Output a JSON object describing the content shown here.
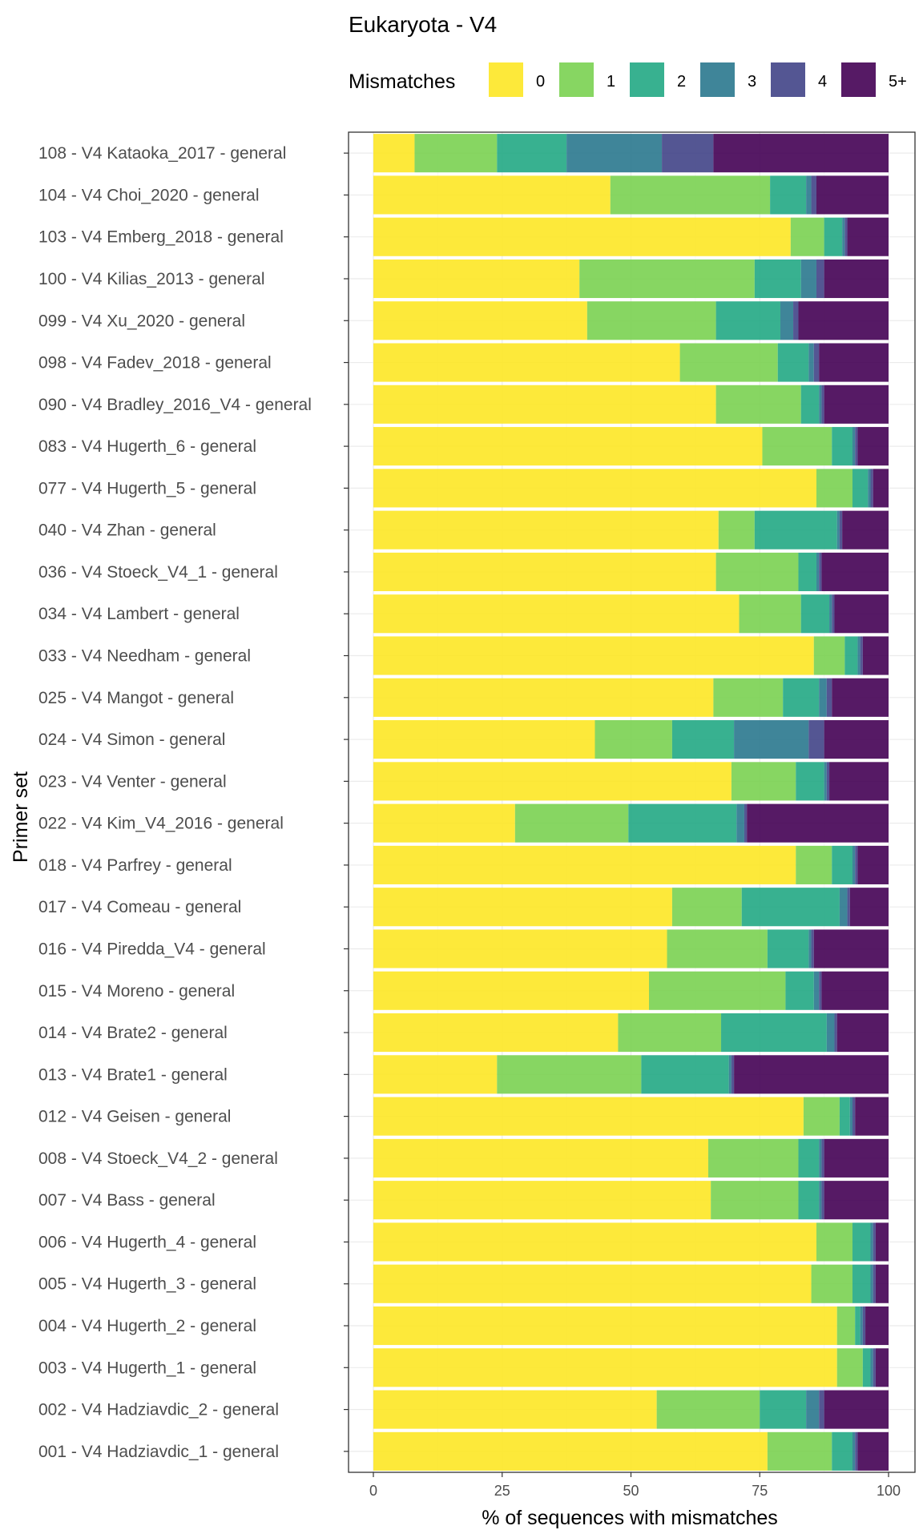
{
  "chart_data": {
    "type": "bar",
    "orientation": "horizontal",
    "stacked": true,
    "title": "Eukaryota - V4",
    "xlabel": "% of sequences with mismatches",
    "ylabel": "Primer set",
    "xlim": [
      0,
      100
    ],
    "xticks": [
      "0",
      "25",
      "50",
      "75",
      "100"
    ],
    "grid": true,
    "legend": {
      "title": "Mismatches",
      "placement": "top",
      "colors": [
        "#fde725",
        "#7ad151",
        "#22a884",
        "#2a788e",
        "#414487",
        "#440154"
      ]
    },
    "categories": [
      "108 - V4 Kataoka_2017 - general",
      "104 - V4 Choi_2020 - general",
      "103 - V4 Emberg_2018 - general",
      "100 - V4 Kilias_2013 - general",
      "099 - V4 Xu_2020 - general",
      "098 - V4 Fadev_2018 - general",
      "090 - V4 Bradley_2016_V4 - general",
      "083 - V4 Hugerth_6 - general",
      "077 - V4 Hugerth_5 - general",
      "040 - V4 Zhan - general",
      "036 - V4 Stoeck_V4_1 - general",
      "034 - V4 Lambert - general",
      "033 - V4 Needham - general",
      "025 - V4 Mangot - general",
      "024 - V4 Simon - general",
      "023 - V4 Venter - general",
      "022 - V4 Kim_V4_2016 - general",
      "018 - V4 Parfrey - general",
      "017 - V4 Comeau - general",
      "016 - V4 Piredda_V4 - general",
      "015 - V4 Moreno - general",
      "014 - V4 Brate2 - general",
      "013 - V4 Brate1 - general",
      "012 - V4 Geisen - general",
      "008 - V4 Stoeck_V4_2 - general",
      "007 - V4 Bass - general",
      "006 - V4 Hugerth_4 - general",
      "005 - V4 Hugerth_3 - general",
      "004 - V4 Hugerth_2 - general",
      "003 - V4 Hugerth_1 - general",
      "002 - V4 Hadziavdic_2 - general",
      "001 - V4 Hadziavdic_1 - general"
    ],
    "series": [
      {
        "name": "0",
        "values": [
          8,
          46,
          81,
          40,
          41.5,
          59.5,
          66.5,
          75.5,
          86,
          67,
          66.5,
          71,
          85.5,
          66,
          43,
          69.5,
          27.5,
          82,
          58,
          57,
          53.5,
          47.5,
          24,
          83.5,
          65,
          65.5,
          86,
          85,
          90,
          90,
          55,
          76.5
        ]
      },
      {
        "name": "1",
        "values": [
          16,
          31,
          6.5,
          34,
          25,
          19,
          16.5,
          13.5,
          7,
          7,
          16,
          12,
          6,
          13.5,
          15,
          12.5,
          22,
          7,
          13.5,
          19.5,
          26.5,
          20,
          28,
          7,
          17.5,
          17,
          7,
          8,
          3.5,
          5,
          20,
          12.5
        ]
      },
      {
        "name": "2",
        "values": [
          13.5,
          7,
          3.5,
          9,
          12.5,
          6,
          3.5,
          4,
          3,
          16,
          3.5,
          5.5,
          2.5,
          7,
          12,
          5.5,
          21,
          4,
          19,
          8,
          5.5,
          20.5,
          17,
          2,
          4,
          4,
          3.5,
          3.5,
          1,
          1.5,
          9,
          4
        ]
      },
      {
        "name": "3",
        "values": [
          18.5,
          1,
          0.5,
          3,
          2.5,
          1,
          0.5,
          0.5,
          0.5,
          0.5,
          0.5,
          0.5,
          0.5,
          1.5,
          14.5,
          0.5,
          1.5,
          0.5,
          1.5,
          0.5,
          1,
          1.5,
          0.5,
          0.5,
          0.5,
          0.5,
          0.5,
          0.5,
          0.5,
          0.5,
          2.5,
          0.5
        ]
      },
      {
        "name": "4",
        "values": [
          10,
          1,
          0.5,
          1.5,
          1,
          1,
          0.5,
          0.5,
          0.5,
          0.5,
          0.5,
          0.5,
          0.5,
          1,
          3,
          0.5,
          0.5,
          0.5,
          0.5,
          0.5,
          0.5,
          0.5,
          0.5,
          0.5,
          0.5,
          0.5,
          0.5,
          0.5,
          0.5,
          0.5,
          1,
          0.5
        ]
      },
      {
        "name": "5+",
        "values": [
          34,
          14,
          8,
          12.5,
          17.5,
          13.5,
          12.5,
          6,
          3,
          9,
          13,
          10.5,
          5,
          11,
          12.5,
          11.5,
          27.5,
          6,
          7.5,
          14.5,
          13,
          10,
          30,
          6.5,
          12.5,
          12.5,
          2.5,
          2.5,
          4.5,
          2.5,
          12.5,
          6
        ]
      }
    ]
  }
}
